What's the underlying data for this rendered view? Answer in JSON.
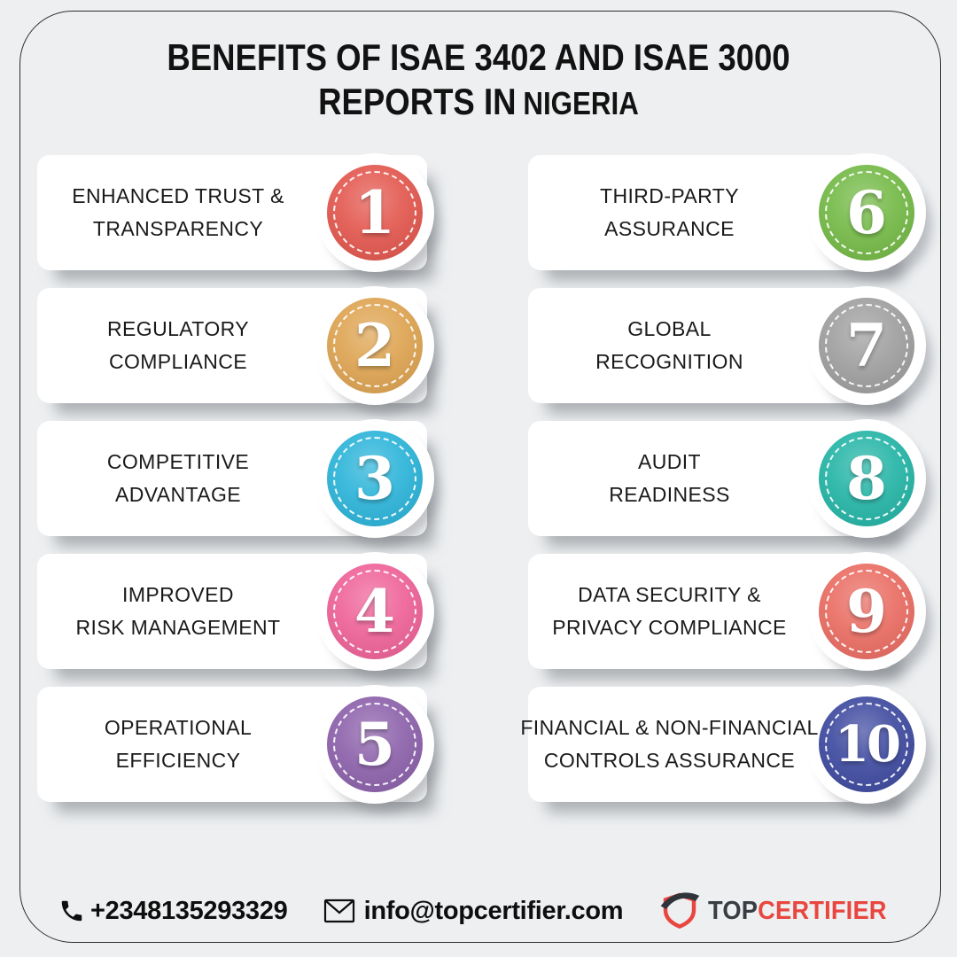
{
  "page": {
    "background": "#edeff1",
    "border_color": "#2e2e2e"
  },
  "title": {
    "line1": "BENEFITS OF ISAE 3402 AND ISAE 3000",
    "line2_main": "REPORTS IN",
    "line2_location": "NIGERIA"
  },
  "cards": [
    {
      "number": "1",
      "line1": "ENHANCED TRUST &",
      "line2": "TRANSPARENCY",
      "color": "#e2544b"
    },
    {
      "number": "2",
      "line1": "REGULATORY",
      "line2": "COMPLIANCE",
      "color": "#dda24e"
    },
    {
      "number": "3",
      "line1": "COMPETITIVE",
      "line2": "ADVANTAGE",
      "color": "#27b2d8"
    },
    {
      "number": "4",
      "line1": "IMPROVED",
      "line2": "RISK MANAGEMENT",
      "color": "#ee5f96"
    },
    {
      "number": "5",
      "line1": "OPERATIONAL",
      "line2": "EFFICIENCY",
      "color": "#8a5ea9"
    },
    {
      "number": "6",
      "line1": "THIRD-PARTY",
      "line2": "ASSURANCE",
      "color": "#71b843"
    },
    {
      "number": "7",
      "line1": "GLOBAL",
      "line2": "RECOGNITION",
      "color": "#9d9d9d"
    },
    {
      "number": "8",
      "line1": "AUDIT",
      "line2": "READINESS",
      "color": "#20b3a4"
    },
    {
      "number": "9",
      "line1": "DATA SECURITY &",
      "line2": "PRIVACY COMPLIANCE",
      "color": "#e96a60"
    },
    {
      "number": "10",
      "line1": "FINANCIAL & NON-FINANCIAL",
      "line2": "CONTROLS ASSURANCE",
      "color": "#3a469d"
    }
  ],
  "footer": {
    "phone": "+2348135293329",
    "email": "info@topcertifier.com",
    "logo": {
      "text_top": "TOP",
      "text_certifier": "CERTIFIER",
      "brand_dark": "#383d43",
      "brand_red": "#e8463f"
    }
  }
}
